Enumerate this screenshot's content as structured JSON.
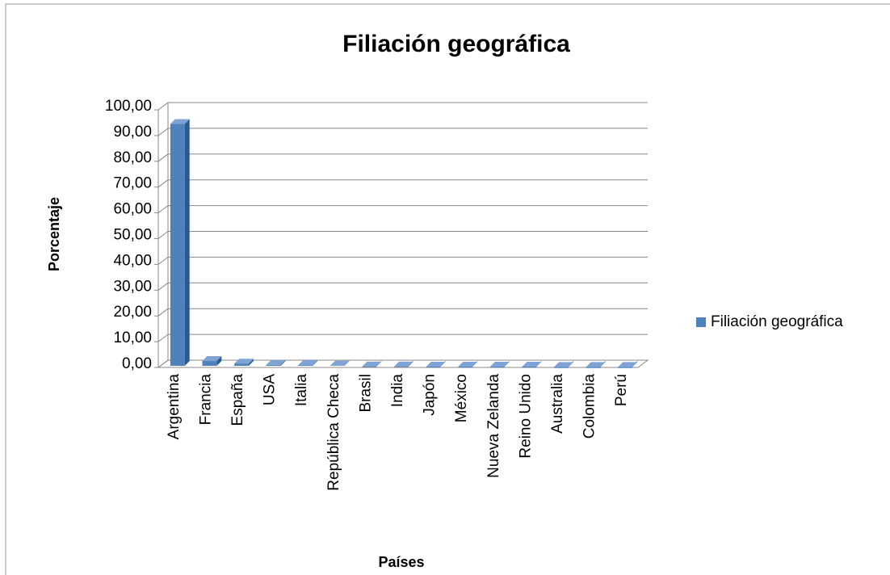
{
  "chart_data": {
    "type": "bar3d",
    "title": "Filiación geográfica",
    "x_label": "Países",
    "y_label": "Porcentaje",
    "categories": [
      "Argentina",
      "Francia",
      "España",
      "USA",
      "Italia",
      "República Checa",
      "Brasil",
      "India",
      "Japón",
      "México",
      "Nueva Zelanda",
      "Reino Unido",
      "Australia",
      "Colombia",
      "Perú"
    ],
    "series": [
      {
        "name": "Filiación geográfica",
        "color": "#4f81bd",
        "values": [
          94.5,
          2.5,
          1.5,
          1.0,
          0.9,
          0.7,
          0.4,
          0.4,
          0.3,
          0.3,
          0.3,
          0.3,
          0.2,
          0.2,
          0.2
        ]
      }
    ],
    "ylim": [
      0,
      100
    ],
    "yticks": [
      {
        "value": 0,
        "label": "0,00"
      },
      {
        "value": 10,
        "label": "10,00"
      },
      {
        "value": 20,
        "label": "20,00"
      },
      {
        "value": 30,
        "label": "30,00"
      },
      {
        "value": 40,
        "label": "40,00"
      },
      {
        "value": 50,
        "label": "50,00"
      },
      {
        "value": 60,
        "label": "60,00"
      },
      {
        "value": 70,
        "label": "70,00"
      },
      {
        "value": 80,
        "label": "80,00"
      },
      {
        "value": 90,
        "label": "90,00"
      },
      {
        "value": 100,
        "label": "100,00"
      }
    ],
    "grid": true,
    "legend": "right"
  }
}
